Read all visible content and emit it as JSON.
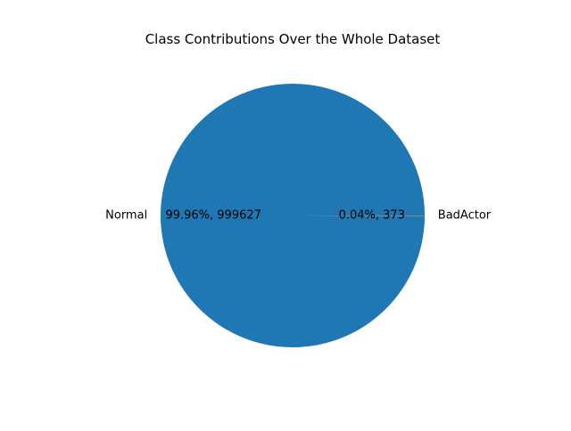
{
  "chart_data": {
    "type": "pie",
    "title": "Class Contributions Over the Whole Dataset",
    "slices": [
      {
        "label": "Normal",
        "value": 999627,
        "percent_label": "99.96%, 999627",
        "color": "#1f77b4"
      },
      {
        "label": "BadActor",
        "value": 373,
        "percent_label": "0.04%, 373",
        "color": "#ff7f0e"
      }
    ],
    "start_angle_deg": 0,
    "direction": "counterclockwise",
    "legend": "none"
  }
}
